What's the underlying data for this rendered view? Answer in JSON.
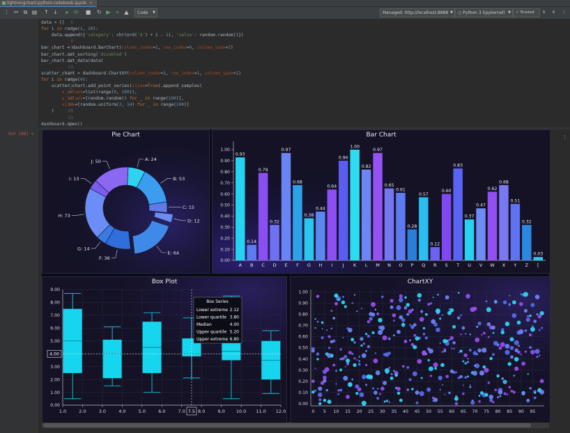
{
  "tab": {
    "title": "lightningchart-python-notebook.ipynb",
    "close": "×"
  },
  "toolbar": {
    "icons": [
      "scissors-icon",
      "copy-icon",
      "paste-icon",
      "arrow-up-icon",
      "arrow-down-icon",
      "run-cell-icon",
      "run-all-icon",
      "interrupt-icon",
      "restart-icon",
      "run-all-forward-icon",
      "fast-forward-icon",
      "clear-icon",
      "delete-icon"
    ],
    "cell_type": "Code",
    "managed": "Managed: http://localhost:8888",
    "kernel": "Python 3 (ipykernel)",
    "trusted": "Trusted"
  },
  "code": {
    "start_line": 6,
    "lines": [
      [
        {
          "t": "data = []",
          "c": ""
        }
      ],
      [
        {
          "t": "for ",
          "c": "kw"
        },
        {
          "t": "i ",
          "c": ""
        },
        {
          "t": "in ",
          "c": "kw"
        },
        {
          "t": "range(",
          "c": ""
        },
        {
          "t": "1",
          "c": "num"
        },
        {
          "t": ", ",
          "c": ""
        },
        {
          "t": "28",
          "c": "num"
        },
        {
          "t": "):",
          "c": ""
        }
      ],
      [
        {
          "t": "    data.append({",
          "c": ""
        },
        {
          "t": "'category'",
          "c": "str"
        },
        {
          "t": ": chr(ord(",
          "c": ""
        },
        {
          "t": "'A'",
          "c": "str"
        },
        {
          "t": ") + i - ",
          "c": ""
        },
        {
          "t": "1",
          "c": "num"
        },
        {
          "t": "), ",
          "c": ""
        },
        {
          "t": "'value'",
          "c": "str"
        },
        {
          "t": ": random.random()})",
          "c": ""
        }
      ],
      [],
      [
        {
          "t": "bar_chart = dashboard.BarChart(",
          "c": ""
        },
        {
          "t": "column_index",
          "c": "prm"
        },
        {
          "t": "=",
          "c": ""
        },
        {
          "t": "1",
          "c": "num"
        },
        {
          "t": ", ",
          "c": ""
        },
        {
          "t": "row_index",
          "c": "prm"
        },
        {
          "t": "=",
          "c": ""
        },
        {
          "t": "0",
          "c": "num"
        },
        {
          "t": ", ",
          "c": ""
        },
        {
          "t": "column_span",
          "c": "prm"
        },
        {
          "t": "=",
          "c": ""
        },
        {
          "t": "2",
          "c": "num"
        },
        {
          "t": ")",
          "c": ""
        }
      ],
      [
        {
          "t": "bar_chart.set_sorting(",
          "c": ""
        },
        {
          "t": "'disabled'",
          "c": "str"
        },
        {
          "t": ")",
          "c": ""
        }
      ],
      [
        {
          "t": "bar_chart.set_data(data)",
          "c": ""
        }
      ],
      [],
      [
        {
          "t": "scatter_chart = dashboard.ChartXY(",
          "c": ""
        },
        {
          "t": "column_index",
          "c": "prm"
        },
        {
          "t": "=",
          "c": ""
        },
        {
          "t": "2",
          "c": "num"
        },
        {
          "t": ", ",
          "c": ""
        },
        {
          "t": "row_index",
          "c": "prm"
        },
        {
          "t": "=",
          "c": ""
        },
        {
          "t": "1",
          "c": "num"
        },
        {
          "t": ", ",
          "c": ""
        },
        {
          "t": "column_span",
          "c": "prm"
        },
        {
          "t": "=",
          "c": ""
        },
        {
          "t": "1",
          "c": "num"
        },
        {
          "t": ")",
          "c": ""
        }
      ],
      [
        {
          "t": "for ",
          "c": "kw"
        },
        {
          "t": "i ",
          "c": ""
        },
        {
          "t": "in ",
          "c": "kw"
        },
        {
          "t": "range(",
          "c": ""
        },
        {
          "t": "4",
          "c": "num"
        },
        {
          "t": "):",
          "c": ""
        }
      ],
      [
        {
          "t": "    scatter_chart.add_point_series(",
          "c": ""
        },
        {
          "t": "sizes",
          "c": "prm"
        },
        {
          "t": "=",
          "c": ""
        },
        {
          "t": "True",
          "c": "kw"
        },
        {
          "t": ").append_samples(",
          "c": ""
        }
      ],
      [
        {
          "t": "        ",
          "c": ""
        },
        {
          "t": "x_values",
          "c": "prm"
        },
        {
          "t": "=list(range(",
          "c": ""
        },
        {
          "t": "0",
          "c": "num"
        },
        {
          "t": ", ",
          "c": ""
        },
        {
          "t": "100",
          "c": "num"
        },
        {
          "t": ")),",
          "c": ""
        }
      ],
      [
        {
          "t": "        ",
          "c": ""
        },
        {
          "t": "y_values",
          "c": "prm"
        },
        {
          "t": "=[random.random() ",
          "c": ""
        },
        {
          "t": "for ",
          "c": "kw"
        },
        {
          "t": "_ ",
          "c": ""
        },
        {
          "t": "in ",
          "c": "kw"
        },
        {
          "t": "range(",
          "c": ""
        },
        {
          "t": "100",
          "c": "num"
        },
        {
          "t": ")],",
          "c": ""
        }
      ],
      [
        {
          "t": "        ",
          "c": ""
        },
        {
          "t": "sizes",
          "c": "prm"
        },
        {
          "t": "=[random.uniform(",
          "c": ""
        },
        {
          "t": "2",
          "c": "num"
        },
        {
          "t": ", ",
          "c": ""
        },
        {
          "t": "14",
          "c": "num"
        },
        {
          "t": ") ",
          "c": ""
        },
        {
          "t": "for ",
          "c": "kw"
        },
        {
          "t": "_ ",
          "c": ""
        },
        {
          "t": "in ",
          "c": "kw"
        },
        {
          "t": "range(",
          "c": ""
        },
        {
          "t": "100",
          "c": "num"
        },
        {
          "t": ")]",
          "c": ""
        }
      ],
      [
        {
          "t": "    )",
          "c": ""
        }
      ],
      [],
      [
        {
          "t": "dashboard.open()",
          "c": ""
        }
      ]
    ]
  },
  "output": {
    "label": "Out [88]",
    "chevron": "⌄"
  },
  "pie": {
    "title": "Pie Chart",
    "slices": [
      {
        "label": "A",
        "value": 24,
        "color": "#2fd3ef"
      },
      {
        "label": "B",
        "value": 53,
        "color": "#3b9cf0"
      },
      {
        "label": "C",
        "value": 15,
        "color": "#5f7be8"
      },
      {
        "label": "D",
        "value": 12,
        "color": "#6b8bf2"
      },
      {
        "label": "E",
        "value": 64,
        "color": "#3f8ae8"
      },
      {
        "label": "F",
        "value": 36,
        "color": "#2f6fdc"
      },
      {
        "label": "G",
        "value": 14,
        "color": "#3a7be2"
      },
      {
        "label": "H",
        "value": 73,
        "color": "#6c8cf6"
      },
      {
        "label": "I",
        "value": 13,
        "color": "#7a5cf0"
      },
      {
        "label": "J",
        "value": 50,
        "color": "#8a68f2"
      }
    ]
  },
  "bar": {
    "title": "Bar Chart",
    "chart_data": {
      "type": "bar",
      "categories": [
        "A",
        "B",
        "C",
        "D",
        "E",
        "F",
        "G",
        "H",
        "I",
        "J",
        "K",
        "L",
        "M",
        "N",
        "O",
        "P",
        "Q",
        "R",
        "S",
        "T",
        "U",
        "V",
        "W",
        "X",
        "Y",
        "Z",
        "["
      ],
      "values": [
        0.93,
        0.14,
        0.79,
        0.32,
        0.97,
        0.68,
        0.38,
        0.44,
        0.64,
        0.9,
        1.0,
        0.82,
        0.97,
        0.65,
        0.61,
        0.28,
        0.57,
        0.12,
        0.6,
        0.83,
        0.37,
        0.47,
        0.62,
        0.68,
        0.51,
        0.32,
        0.03
      ],
      "ylim": [
        0,
        1.05
      ],
      "yticks": [
        "0.00",
        "0.10",
        "0.20",
        "0.30",
        "0.40",
        "0.50",
        "0.60",
        "0.70",
        "0.80",
        "0.90",
        "1.00"
      ]
    },
    "colors": [
      "#25d4f0",
      "#5b7df0",
      "#8a4ff0",
      "#6f72f0",
      "#6b84f4",
      "#2ea2e6",
      "#2bc6ee",
      "#5a88ee",
      "#8d4ef2",
      "#5b5cf0",
      "#2edcf2",
      "#6e86f4",
      "#9552f2",
      "#7476f2",
      "#5e7af0",
      "#2a7ed8",
      "#2bbef0",
      "#6c64f0",
      "#8048f0",
      "#5a64f4",
      "#29d0f0",
      "#6e8cf4",
      "#924ff2",
      "#7a78f0",
      "#5e74ee",
      "#2a88e0",
      "#2bc8f0"
    ]
  },
  "box": {
    "title": "Box Plot",
    "chart_data": {
      "type": "box",
      "x_ticks": [
        "1.0",
        "2.0",
        "3.0",
        "4.0",
        "5.0",
        "6.0",
        "7.0",
        "8.0",
        "9.0",
        "10.0",
        "11.0",
        "12.0"
      ],
      "y_ticks": [
        "0.00",
        "1.00",
        "2.00",
        "3.00",
        "4.00",
        "5.00",
        "6.00",
        "7.00",
        "8.00",
        "9.00"
      ],
      "xlim": [
        1,
        12
      ],
      "ylim": [
        0,
        9
      ],
      "boxes": [
        {
          "x": 1.5,
          "low": 0.5,
          "q1": 2.5,
          "median": 5.0,
          "q3": 7.5,
          "high": 8.7
        },
        {
          "x": 3.5,
          "low": 1.5,
          "q1": 2.1,
          "median": 4.0,
          "q3": 5.1,
          "high": 6.1
        },
        {
          "x": 5.5,
          "low": 1.0,
          "q1": 2.5,
          "median": 4.5,
          "q3": 6.5,
          "high": 7.2
        },
        {
          "x": 7.5,
          "low": 2.12,
          "q1": 3.8,
          "median": 4.0,
          "q3": 5.2,
          "high": 6.8
        },
        {
          "x": 9.5,
          "low": 0.5,
          "q1": 3.5,
          "median": 4.2,
          "q3": 5.1,
          "high": 8.5
        },
        {
          "x": 11.5,
          "low": 0.9,
          "q1": 2.0,
          "median": 3.5,
          "q3": 5.0,
          "high": 5.8
        }
      ],
      "cursor": {
        "x_label": "7.5",
        "y_label": "4.00",
        "x": 7.5,
        "y": 4.0
      }
    },
    "tooltip": {
      "title": "Box Series",
      "rows": [
        {
          "k": "Lower extreme",
          "v": "2.12"
        },
        {
          "k": "Lower quartile",
          "v": "3.80"
        },
        {
          "k": "Median",
          "v": "4.00"
        },
        {
          "k": "Upper quartile",
          "v": "5.20"
        },
        {
          "k": "Upper extreme",
          "v": "6.80"
        }
      ]
    }
  },
  "scatter": {
    "title": "ChartXY",
    "chart_data": {
      "type": "scatter",
      "x_ticks": [
        "0",
        "5",
        "10",
        "15",
        "20",
        "25",
        "30",
        "35",
        "40",
        "45",
        "50",
        "55",
        "60",
        "65",
        "70",
        "75",
        "80",
        "85",
        "90",
        "95"
      ],
      "y_ticks": [
        "0.00",
        "0.10",
        "0.20",
        "0.30",
        "0.40",
        "0.50",
        "0.60",
        "0.70",
        "0.80",
        "0.90",
        "1.00"
      ],
      "xlim": [
        -1,
        100
      ],
      "ylim": [
        -0.02,
        1.02
      ],
      "series": [
        {
          "color": "#5a6cf0"
        },
        {
          "color": "#9b4ff2"
        },
        {
          "color": "#2fd9f4"
        },
        {
          "color": "#6f86f6"
        }
      ]
    }
  }
}
